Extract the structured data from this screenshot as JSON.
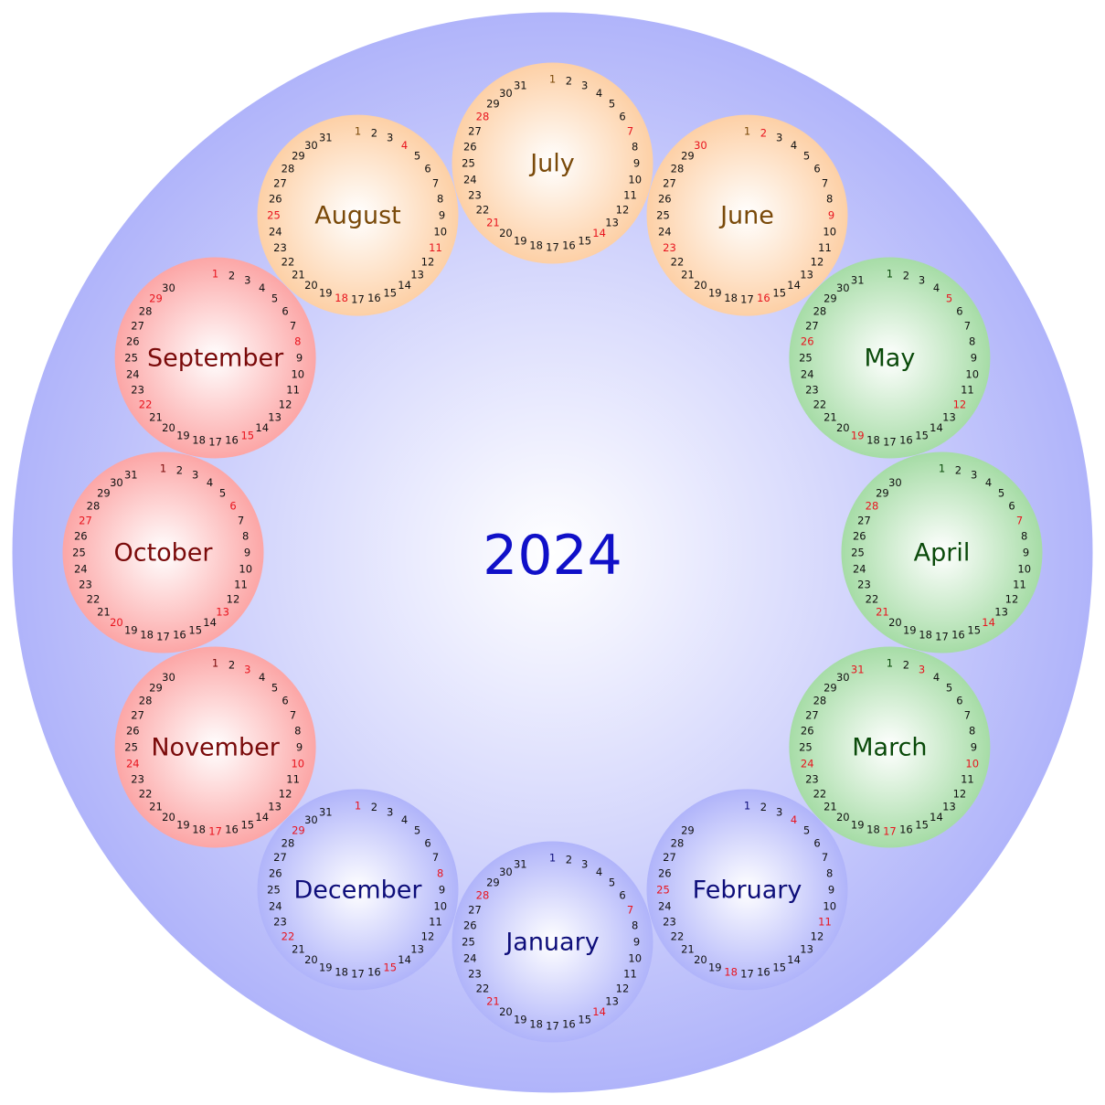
{
  "calendar": {
    "year_label": "2024",
    "colors": {
      "outer": "#b0b4fa",
      "year_text": "#1010c8",
      "sunday": "#e8141e",
      "day_text": "#111111"
    },
    "seasons": {
      "winter": {
        "edge": "#b0b4fa",
        "text": "#0e0e7a"
      },
      "spring": {
        "edge": "#a6dca6",
        "text": "#0a4a0a"
      },
      "summer": {
        "edge": "#fdd0a6",
        "text": "#7a4a0a"
      },
      "autumn": {
        "edge": "#fca6a6",
        "text": "#7a0a0a"
      }
    },
    "months": [
      {
        "name": "January",
        "days": 31,
        "sundays": [
          7,
          14,
          21,
          28
        ],
        "first_day": 1,
        "season": "winter"
      },
      {
        "name": "February",
        "days": 29,
        "sundays": [
          4,
          11,
          18,
          25
        ],
        "first_day": 1,
        "season": "winter"
      },
      {
        "name": "March",
        "days": 31,
        "sundays": [
          3,
          10,
          17,
          24,
          31
        ],
        "first_day": 1,
        "season": "spring"
      },
      {
        "name": "April",
        "days": 30,
        "sundays": [
          7,
          14,
          21,
          28
        ],
        "first_day": 1,
        "season": "spring"
      },
      {
        "name": "May",
        "days": 31,
        "sundays": [
          5,
          12,
          19,
          26
        ],
        "first_day": 1,
        "season": "spring"
      },
      {
        "name": "June",
        "days": 30,
        "sundays": [
          2,
          9,
          16,
          23,
          30
        ],
        "first_day": 1,
        "season": "summer"
      },
      {
        "name": "July",
        "days": 31,
        "sundays": [
          7,
          14,
          21,
          28
        ],
        "first_day": 1,
        "season": "summer"
      },
      {
        "name": "August",
        "days": 31,
        "sundays": [
          4,
          11,
          18,
          25
        ],
        "first_day": 1,
        "season": "summer"
      },
      {
        "name": "September",
        "days": 30,
        "sundays": [
          1,
          8,
          15,
          22,
          29
        ],
        "first_day": 1,
        "season": "autumn"
      },
      {
        "name": "October",
        "days": 31,
        "sundays": [
          6,
          13,
          20,
          27
        ],
        "first_day": 1,
        "season": "autumn"
      },
      {
        "name": "November",
        "days": 30,
        "sundays": [
          3,
          10,
          17,
          24
        ],
        "first_day": 1,
        "season": "autumn"
      },
      {
        "name": "December",
        "days": 31,
        "sundays": [
          1,
          8,
          15,
          22,
          29
        ],
        "first_day": 1,
        "season": "winter"
      }
    ]
  }
}
